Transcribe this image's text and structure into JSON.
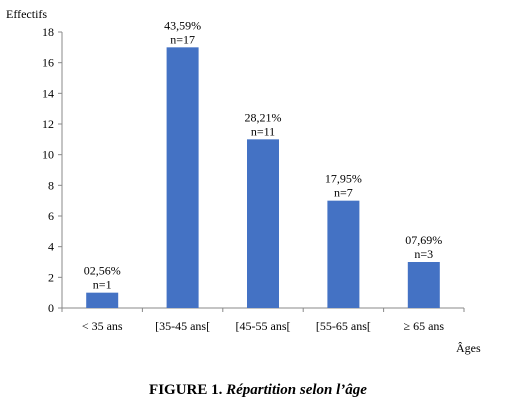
{
  "chart_data": {
    "type": "bar",
    "ylabel": "Effectifs",
    "xlabel": "Âges",
    "ylim": [
      0,
      18
    ],
    "yticks": [
      0,
      2,
      4,
      6,
      8,
      10,
      12,
      14,
      16,
      18
    ],
    "categories": [
      "< 35 ans",
      "[35-45 ans[",
      "[45-55 ans[",
      "[55-65 ans[",
      "≥ 65 ans"
    ],
    "values": [
      1,
      17,
      11,
      7,
      3
    ],
    "percent_labels": [
      "02,56%",
      "43,59%",
      "28,21%",
      "17,95%",
      "07,69%"
    ],
    "count_labels": [
      "n=1",
      "n=17",
      "n=11",
      "n=7",
      "n=3"
    ],
    "bar_color": "#4472C4",
    "grid": false
  },
  "caption": {
    "figure_label": "FIGURE 1.",
    "title": "Répartition selon l’âge"
  }
}
